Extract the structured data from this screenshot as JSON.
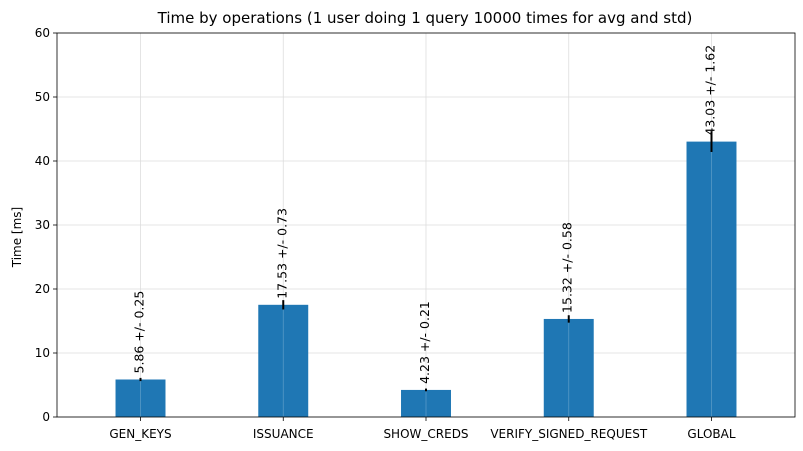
{
  "chart_data": {
    "type": "bar",
    "title": "Time by operations (1 user doing 1 query 10000 times for avg and std)",
    "xlabel": "",
    "ylabel": "Time [ms]",
    "ylim": [
      0,
      60
    ],
    "yticks": [
      0,
      10,
      20,
      30,
      40,
      50,
      60
    ],
    "grid": true,
    "categories": [
      "GEN_KEYS",
      "ISSUANCE",
      "SHOW_CREDS",
      "VERIFY_SIGNED_REQUEST",
      "GLOBAL"
    ],
    "values": [
      5.86,
      17.53,
      4.23,
      15.32,
      43.03
    ],
    "errors": [
      0.25,
      0.73,
      0.21,
      0.58,
      1.62
    ],
    "data_labels": [
      "5.86 +/- 0.25",
      "17.53 +/- 0.73",
      "4.23 +/- 0.21",
      "15.32 +/- 0.58",
      "43.03 +/- 1.62"
    ],
    "bar_color": "#1f77b4",
    "error_color": "#000000",
    "grid_color": "#dddddd"
  }
}
